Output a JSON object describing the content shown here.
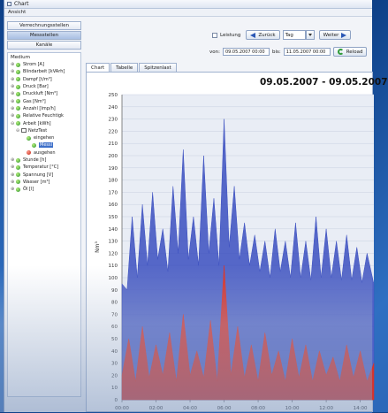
{
  "window": {
    "title": "Chart",
    "menu": [
      "Ansicht"
    ]
  },
  "sidebar": {
    "buttons": [
      "Verrechnungsstellen",
      "Messstellen",
      "Kanäle"
    ],
    "active_button": 1,
    "tree_root": "Medium",
    "items": [
      {
        "label": "Strom [A]",
        "level": 0,
        "exp": "+",
        "icon": "green"
      },
      {
        "label": "Blindarbeit [kVArh]",
        "level": 0,
        "exp": "+",
        "icon": "green"
      },
      {
        "label": "Dampf [t/m³]",
        "level": 0,
        "exp": "+",
        "icon": "green"
      },
      {
        "label": "Druck [Bar]",
        "level": 0,
        "exp": "+",
        "icon": "green"
      },
      {
        "label": "Druckluft [Nm³]",
        "level": 0,
        "exp": "+",
        "icon": "green"
      },
      {
        "label": "Gas [Nm³]",
        "level": 0,
        "exp": "+",
        "icon": "green"
      },
      {
        "label": "Anzahl [Imp/h]",
        "level": 0,
        "exp": "+",
        "icon": "green"
      },
      {
        "label": "Relative Feuchtigk",
        "level": 0,
        "exp": "+",
        "icon": "green"
      },
      {
        "label": "Arbeit [kWh]",
        "level": 0,
        "exp": "-",
        "icon": "green"
      },
      {
        "label": "NetzTest",
        "level": 1,
        "exp": "-",
        "icon": "sub"
      },
      {
        "label": "eingehen",
        "level": 2,
        "exp": "",
        "icon": "green"
      },
      {
        "label": "Messi",
        "level": 3,
        "exp": "",
        "icon": "green",
        "selected": true
      },
      {
        "label": "ausgehen",
        "level": 2,
        "exp": "",
        "icon": "red"
      },
      {
        "label": "Stunde [h]",
        "level": 0,
        "exp": "+",
        "icon": "green"
      },
      {
        "label": "Temperatur [°C]",
        "level": 0,
        "exp": "+",
        "icon": "green"
      },
      {
        "label": "Spannung [V]",
        "level": 0,
        "exp": "+",
        "icon": "green"
      },
      {
        "label": "Wasser [m³]",
        "level": 0,
        "exp": "+",
        "icon": "green"
      },
      {
        "label": "Öl [l]",
        "level": 0,
        "exp": "+",
        "icon": "green"
      }
    ]
  },
  "toolbar": {
    "leistung_label": "Leistung",
    "back_label": "Zurück",
    "period_value": "Tag",
    "next_label": "Weiter",
    "from_label": "von:",
    "from_value": "09.05.2007 00:00",
    "to_label": "bis:",
    "to_value": "11.05.2007 00:00",
    "reload_label": "Reload"
  },
  "tabs": [
    "Chart",
    "Tabelle",
    "Spitzenlast"
  ],
  "active_tab": 0,
  "colors": {
    "series_in": "#3b4fc0",
    "series_out": "#e03020",
    "accent": "#2a57b5"
  },
  "chart_data": {
    "type": "area",
    "title": "09.05.2007 - 09.05.2007",
    "ylabel": "Nm³",
    "ylim": [
      0,
      250
    ],
    "yticks": [
      0,
      10,
      20,
      30,
      40,
      50,
      60,
      70,
      80,
      90,
      100,
      110,
      120,
      130,
      140,
      150,
      160,
      170,
      180,
      190,
      200,
      210,
      220,
      230,
      240,
      250
    ],
    "xticks": [
      "00:00",
      "02:00",
      "04:00",
      "06:00",
      "08:00",
      "10:00",
      "12:00",
      "14:00"
    ],
    "xlim": [
      0,
      14.8
    ],
    "series": [
      {
        "color": "#3b4fc0",
        "x": [
          0,
          0.3,
          0.6,
          0.9,
          1.2,
          1.5,
          1.8,
          2.1,
          2.4,
          2.7,
          3.0,
          3.3,
          3.6,
          3.9,
          4.2,
          4.5,
          4.8,
          5.1,
          5.4,
          5.7,
          6.0,
          6.3,
          6.6,
          6.9,
          7.2,
          7.5,
          7.8,
          8.1,
          8.4,
          8.7,
          9.0,
          9.3,
          9.6,
          9.9,
          10.2,
          10.5,
          10.8,
          11.1,
          11.4,
          11.7,
          12.0,
          12.3,
          12.6,
          12.9,
          13.2,
          13.5,
          13.8,
          14.1,
          14.4,
          14.8
        ],
        "values": [
          95,
          90,
          150,
          100,
          160,
          110,
          170,
          115,
          140,
          105,
          175,
          120,
          205,
          115,
          150,
          110,
          200,
          120,
          165,
          110,
          230,
          125,
          175,
          115,
          145,
          110,
          135,
          105,
          130,
          100,
          140,
          105,
          130,
          100,
          145,
          100,
          130,
          98,
          150,
          100,
          140,
          100,
          130,
          98,
          135,
          98,
          125,
          96,
          120,
          95
        ]
      },
      {
        "color": "#e03020",
        "x": [
          0,
          0.4,
          0.8,
          1.2,
          1.6,
          2.0,
          2.4,
          2.8,
          3.2,
          3.6,
          4.0,
          4.4,
          4.8,
          5.2,
          5.6,
          6.0,
          6.4,
          6.8,
          7.2,
          7.6,
          8.0,
          8.4,
          8.8,
          9.2,
          9.6,
          10.0,
          10.4,
          10.8,
          11.2,
          11.6,
          12.0,
          12.4,
          12.8,
          13.2,
          13.6,
          14.0,
          14.4,
          14.8
        ],
        "values": [
          20,
          50,
          15,
          60,
          18,
          45,
          20,
          55,
          15,
          70,
          20,
          40,
          18,
          65,
          15,
          110,
          20,
          60,
          18,
          45,
          15,
          55,
          20,
          40,
          15,
          50,
          18,
          45,
          15,
          40,
          20,
          35,
          15,
          45,
          18,
          40,
          15,
          30
        ]
      }
    ]
  }
}
